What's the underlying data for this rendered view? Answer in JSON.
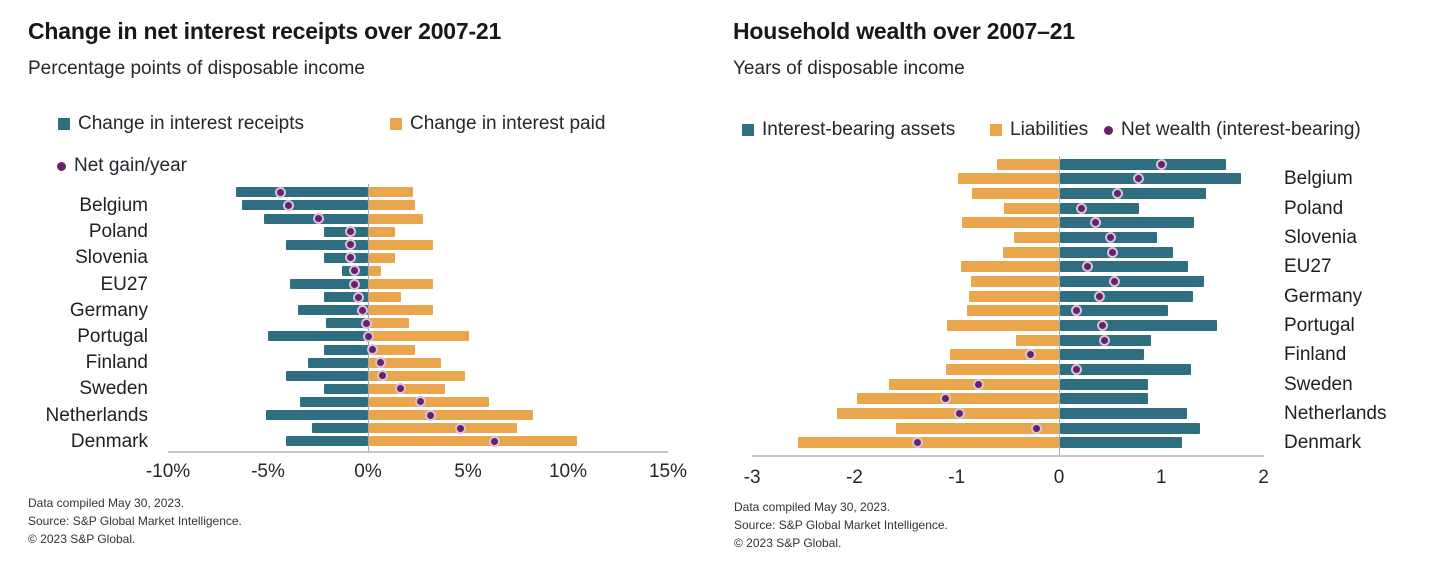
{
  "colors": {
    "teal": "#2e6e80",
    "orange": "#e9a64c",
    "purple": "#662369",
    "dot_ring": "#d9c3d8",
    "axis_line": "#c7c7c7",
    "zero_line": "#a2aab0"
  },
  "charts": {
    "left": {
      "title": "Change in net interest receipts over 2007-21",
      "subtitle": "Percentage points of disposable income",
      "legend": [
        {
          "label": "Change in interest receipts",
          "marker": "square",
          "color": "#2e6e80"
        },
        {
          "label": "Change in interest paid",
          "marker": "square",
          "color": "#e9a64c"
        },
        {
          "label": "Net gain/year",
          "marker": "dot",
          "color": "#662369"
        }
      ],
      "footer_lines": [
        "Data compiled May 30, 2023.",
        "Source: S&P Global Market Intelligence.",
        "© 2023 S&P Global."
      ],
      "chart_data": {
        "type": "bar",
        "orientation": "horizontal-diverging",
        "title": "Change in net interest receipts over 2007-21",
        "xlabel": "Percentage points of disposable income",
        "categories": [
          "Belgium",
          "Poland",
          "Slovenia",
          "EU27",
          "Germany",
          "Portugal",
          "Finland",
          "Sweden",
          "Netherlands",
          "Denmark"
        ],
        "bars_per_category": 2,
        "series": [
          {
            "name": "Change in interest receipts",
            "kind": "bar",
            "color": "#2e6e80",
            "values": [
              [
                -6.6,
                -6.3
              ],
              [
                -5.2,
                -2.2
              ],
              [
                -4.1,
                -2.2
              ],
              [
                -1.3,
                -3.9
              ],
              [
                -2.2,
                -3.5
              ],
              [
                -2.1,
                -5.0
              ],
              [
                -2.2,
                -3.0
              ],
              [
                -4.1,
                -2.2
              ],
              [
                -3.4,
                -5.1
              ],
              [
                -2.8,
                -4.1
              ]
            ]
          },
          {
            "name": "Change in interest paid",
            "kind": "bar",
            "color": "#e9a64c",
            "values": [
              [
                2.2,
                2.3
              ],
              [
                2.7,
                1.3
              ],
              [
                3.2,
                1.3
              ],
              [
                0.6,
                3.2
              ],
              [
                1.6,
                3.2
              ],
              [
                2.0,
                5.0
              ],
              [
                2.3,
                3.6
              ],
              [
                4.8,
                3.8
              ],
              [
                6.0,
                8.2
              ],
              [
                7.4,
                10.4
              ]
            ]
          },
          {
            "name": "Net gain/year",
            "kind": "point",
            "color": "#662369",
            "values": [
              [
                -4.4,
                -4.0
              ],
              [
                -2.5,
                -0.9
              ],
              [
                -0.9,
                -0.9
              ],
              [
                -0.7,
                -0.7
              ],
              [
                -0.5,
                -0.3
              ],
              [
                -0.1,
                0.0
              ],
              [
                0.2,
                0.6
              ],
              [
                0.7,
                1.6
              ],
              [
                2.6,
                3.1
              ],
              [
                4.6,
                6.3
              ]
            ]
          }
        ],
        "x_ticks": [
          {
            "value": -10,
            "label": "-10%"
          },
          {
            "value": -5,
            "label": "-5%"
          },
          {
            "value": 0,
            "label": "0%"
          },
          {
            "value": 5,
            "label": "5%"
          },
          {
            "value": 10,
            "label": "10%"
          },
          {
            "value": 15,
            "label": "15%"
          }
        ],
        "xlim": [
          -10,
          15
        ],
        "category_label_side": "left",
        "grid": false
      }
    },
    "right": {
      "title": "Household wealth over 2007–21",
      "subtitle": "Years of disposable income",
      "legend": [
        {
          "label": "Interest-bearing assets",
          "marker": "square",
          "color": "#2e6e80"
        },
        {
          "label": "Liabilities",
          "marker": "square",
          "color": "#e9a64c"
        },
        {
          "label": "Net wealth (interest-bearing)",
          "marker": "dot",
          "color": "#662369"
        }
      ],
      "footer_lines": [
        "Data compiled May 30, 2023.",
        "Source: S&P Global Market Intelligence.",
        "© 2023 S&P Global."
      ],
      "chart_data": {
        "type": "bar",
        "orientation": "horizontal-diverging",
        "title": "Household wealth over 2007–21",
        "xlabel": "Years of disposable income",
        "categories": [
          "Belgium",
          "Poland",
          "Slovenia",
          "EU27",
          "Germany",
          "Portugal",
          "Finland",
          "Sweden",
          "Netherlands",
          "Denmark"
        ],
        "bars_per_category": 2,
        "series": [
          {
            "name": "Interest-bearing assets",
            "kind": "bar",
            "color": "#2e6e80",
            "values": [
              [
                1.62,
                1.77
              ],
              [
                1.43,
                0.77
              ],
              [
                1.31,
                0.95
              ],
              [
                1.1,
                1.25
              ],
              [
                1.41,
                1.3
              ],
              [
                1.06,
                1.53
              ],
              [
                0.89,
                0.82
              ],
              [
                1.28,
                0.86
              ],
              [
                0.86,
                1.24
              ],
              [
                1.37,
                1.19
              ]
            ]
          },
          {
            "name": "Liabilities",
            "kind": "bar",
            "color": "#e9a64c",
            "values": [
              [
                -0.61,
                -0.99
              ],
              [
                -0.85,
                -0.54
              ],
              [
                -0.95,
                -0.44
              ],
              [
                -0.55,
                -0.96
              ],
              [
                -0.86,
                -0.88
              ],
              [
                -0.9,
                -1.09
              ],
              [
                -0.42,
                -1.07
              ],
              [
                -1.1,
                -1.66
              ],
              [
                -1.97,
                -2.17
              ],
              [
                -1.59,
                -2.55
              ]
            ]
          },
          {
            "name": "Net wealth (interest-bearing)",
            "kind": "point",
            "color": "#662369",
            "values": [
              [
                1.0,
                0.78
              ],
              [
                0.57,
                0.22
              ],
              [
                0.36,
                0.5
              ],
              [
                0.52,
                0.28
              ],
              [
                0.54,
                0.4
              ],
              [
                0.17,
                0.43
              ],
              [
                0.44,
                -0.28
              ],
              [
                0.17,
                -0.79
              ],
              [
                -1.11,
                -0.97
              ],
              [
                -0.22,
                -1.38
              ]
            ]
          }
        ],
        "x_ticks": [
          {
            "value": -3,
            "label": "-3"
          },
          {
            "value": -2,
            "label": "-2"
          },
          {
            "value": -1,
            "label": "-1"
          },
          {
            "value": 0,
            "label": "0"
          },
          {
            "value": 1,
            "label": "1"
          },
          {
            "value": 2,
            "label": "2"
          }
        ],
        "xlim": [
          -3,
          2
        ],
        "category_label_side": "right",
        "grid": false
      }
    }
  }
}
